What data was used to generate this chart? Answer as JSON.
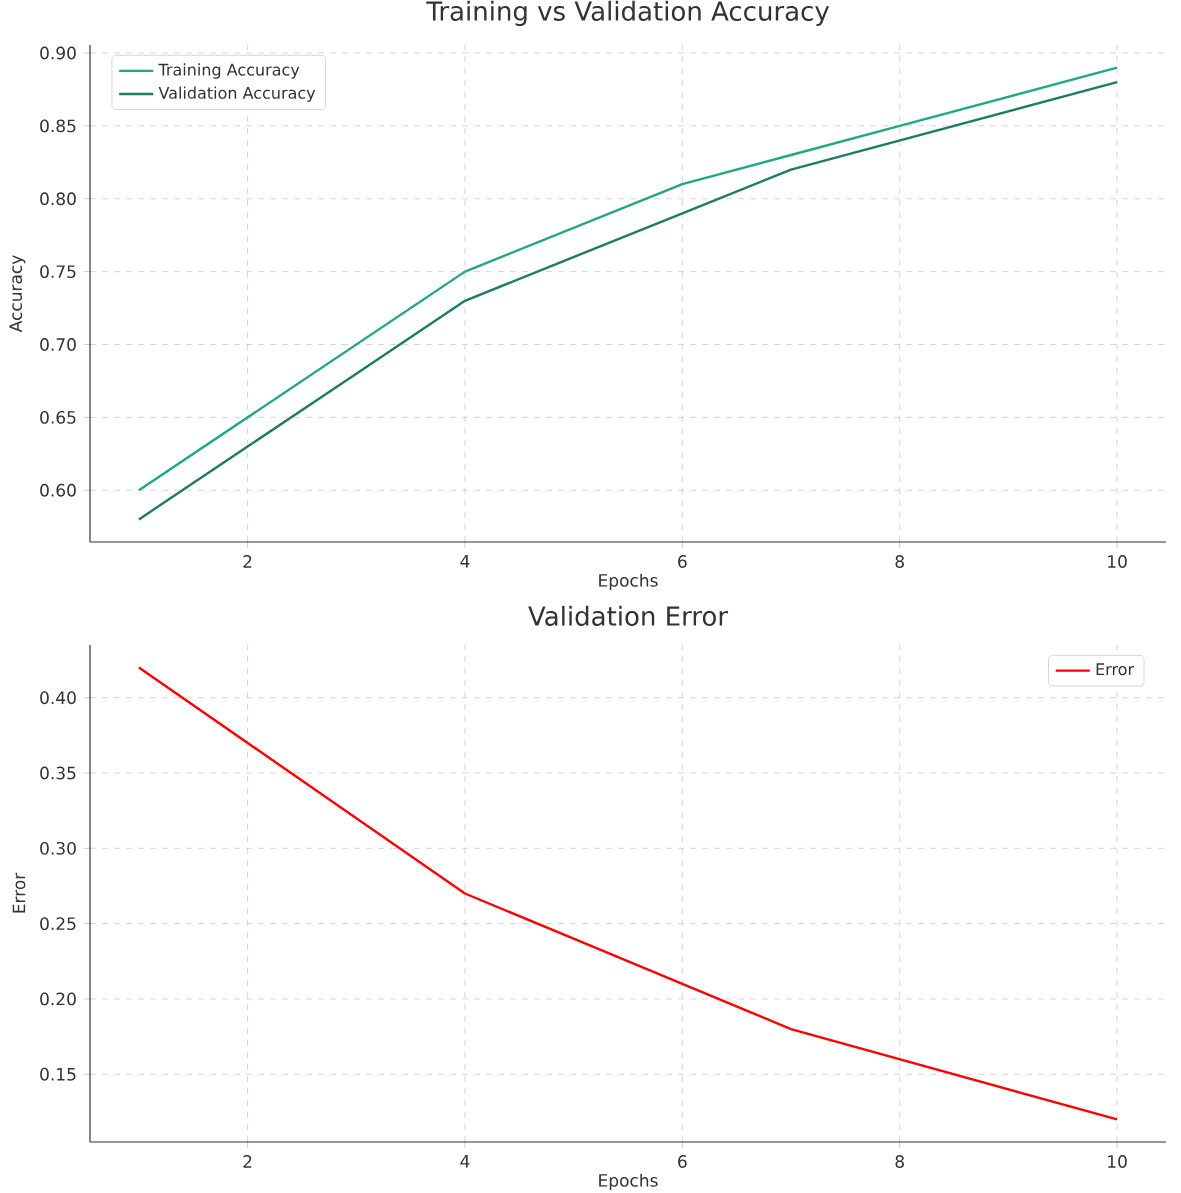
{
  "chart_data": [
    {
      "type": "line",
      "title": "Training vs Validation Accuracy",
      "xlabel": "Epochs",
      "ylabel": "Accuracy",
      "x": [
        1,
        2,
        3,
        4,
        5,
        6,
        7,
        8,
        9,
        10
      ],
      "series": [
        {
          "name": "Training Accuracy",
          "color": "#21a883",
          "values": [
            0.6,
            0.65,
            0.7,
            0.75,
            0.78,
            0.81,
            0.83,
            0.85,
            0.87,
            0.89
          ]
        },
        {
          "name": "Validation Accuracy",
          "color": "#1e7b65",
          "values": [
            0.58,
            0.63,
            0.68,
            0.73,
            0.76,
            0.79,
            0.82,
            0.84,
            0.86,
            0.88
          ]
        }
      ],
      "xlim": [
        0.55,
        10.45
      ],
      "ylim": [
        0.5645,
        0.9055
      ],
      "xticks": [
        2,
        4,
        6,
        8,
        10
      ],
      "yticks": [
        {
          "value": 0.6,
          "label": "0.60"
        },
        {
          "value": 0.65,
          "label": "0.65"
        },
        {
          "value": 0.7,
          "label": "0.70"
        },
        {
          "value": 0.75,
          "label": "0.75"
        },
        {
          "value": 0.8,
          "label": "0.80"
        },
        {
          "value": 0.85,
          "label": "0.85"
        },
        {
          "value": 0.9,
          "label": "0.90"
        }
      ],
      "grid": true,
      "legend": "top left"
    },
    {
      "type": "line",
      "title": "Validation Error",
      "xlabel": "Epochs",
      "ylabel": "Error",
      "x": [
        1,
        2,
        3,
        4,
        5,
        6,
        7,
        8,
        9,
        10
      ],
      "series": [
        {
          "name": "Error",
          "color": "#ff0000",
          "values": [
            0.42,
            0.37,
            0.32,
            0.27,
            0.24,
            0.21,
            0.18,
            0.16,
            0.14,
            0.12
          ]
        }
      ],
      "xlim": [
        0.55,
        10.45
      ],
      "ylim": [
        0.105,
        0.435
      ],
      "xticks": [
        2,
        4,
        6,
        8,
        10
      ],
      "yticks": [
        {
          "value": 0.15,
          "label": "0.15"
        },
        {
          "value": 0.2,
          "label": "0.20"
        },
        {
          "value": 0.25,
          "label": "0.25"
        },
        {
          "value": 0.3,
          "label": "0.30"
        },
        {
          "value": 0.35,
          "label": "0.35"
        },
        {
          "value": 0.4,
          "label": "0.40"
        }
      ],
      "grid": true,
      "legend": "top right"
    }
  ]
}
